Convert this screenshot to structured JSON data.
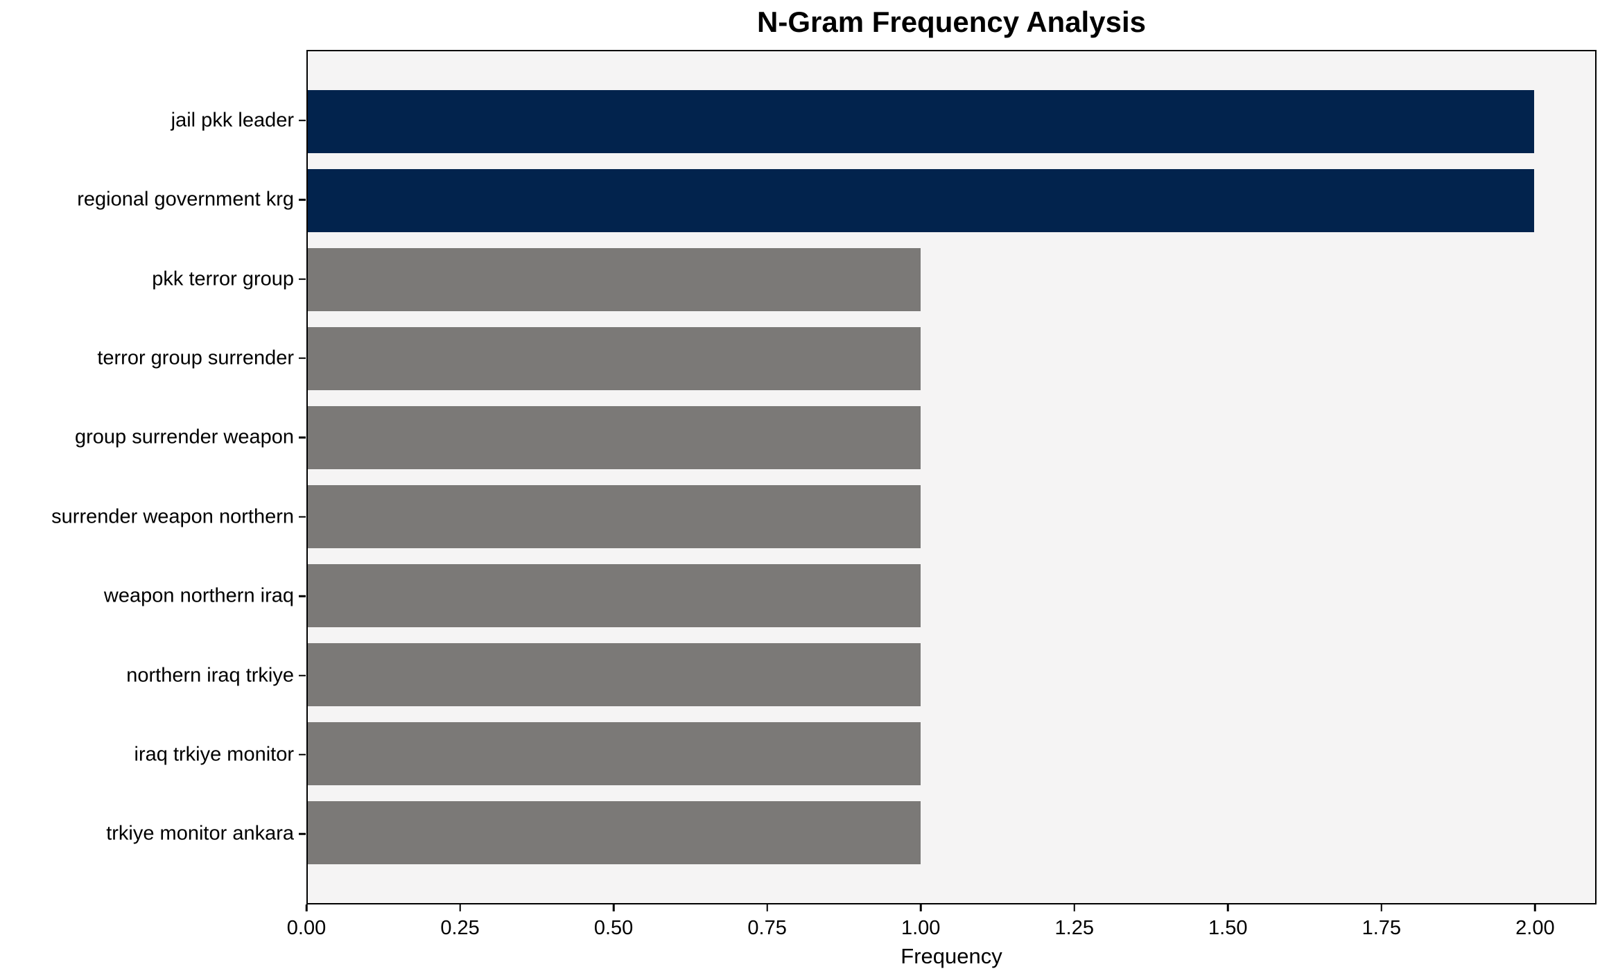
{
  "title": "N-Gram Frequency Analysis",
  "chart_data": {
    "type": "bar",
    "orientation": "horizontal",
    "title": "N-Gram Frequency Analysis",
    "xlabel": "Frequency",
    "ylabel": "",
    "categories": [
      "jail pkk leader",
      "regional government krg",
      "pkk terror group",
      "terror group surrender",
      "group surrender weapon",
      "surrender weapon northern",
      "weapon northern iraq",
      "northern iraq trkiye",
      "iraq trkiye monitor",
      "trkiye monitor ankara"
    ],
    "values": [
      2,
      2,
      1,
      1,
      1,
      1,
      1,
      1,
      1,
      1
    ],
    "bar_colors": [
      "#02234d",
      "#02234d",
      "#7b7977",
      "#7b7977",
      "#7b7977",
      "#7b7977",
      "#7b7977",
      "#7b7977",
      "#7b7977",
      "#7b7977"
    ],
    "xlim": [
      0,
      2.1
    ],
    "xticks": [
      {
        "value": 0.0,
        "label": "0.00"
      },
      {
        "value": 0.25,
        "label": "0.25"
      },
      {
        "value": 0.5,
        "label": "0.50"
      },
      {
        "value": 0.75,
        "label": "0.75"
      },
      {
        "value": 1.0,
        "label": "1.00"
      },
      {
        "value": 1.25,
        "label": "1.25"
      },
      {
        "value": 1.5,
        "label": "1.50"
      },
      {
        "value": 1.75,
        "label": "1.75"
      },
      {
        "value": 2.0,
        "label": "2.00"
      }
    ],
    "grid": false,
    "legend_position": "none",
    "colors": {
      "highlight_bar": "#02234d",
      "default_bar": "#7b7977",
      "plot_background": "#f5f4f4",
      "figure_background": "#ffffff",
      "spine": "#000000",
      "text": "#000000"
    }
  }
}
